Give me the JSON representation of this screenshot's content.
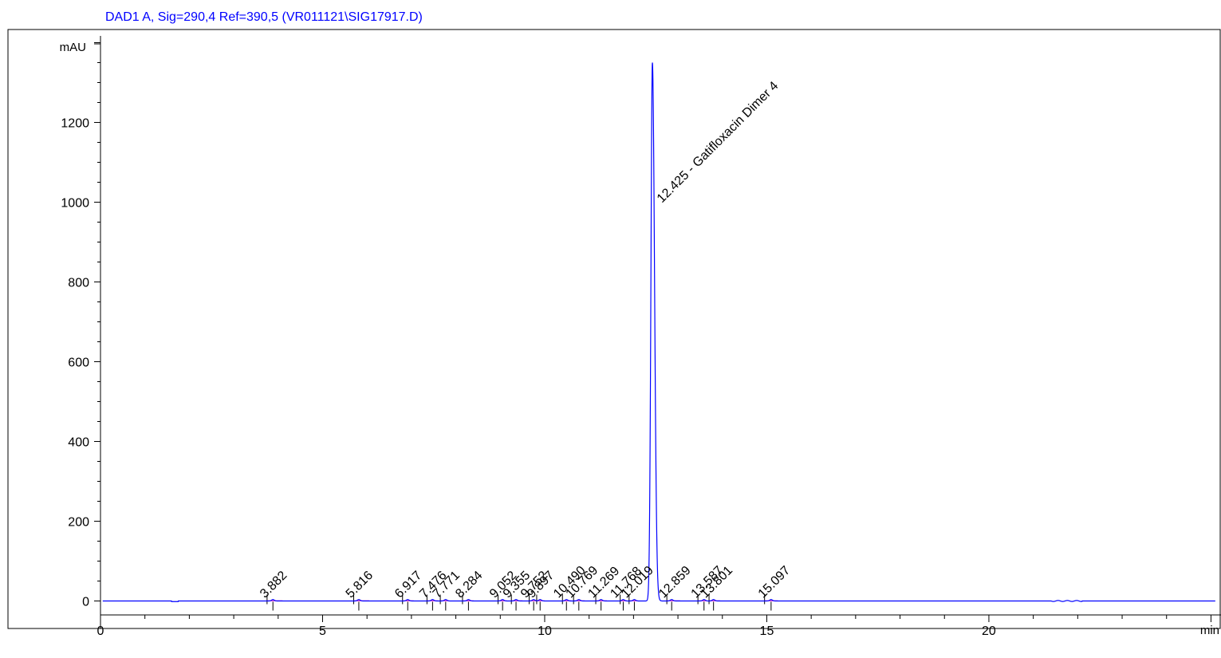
{
  "chart_data": {
    "type": "line",
    "title": "DAD1 A, Sig=290,4 Ref=390,5 (VR011121\\SIG17917.D)",
    "xlabel": "min",
    "ylabel": "mAU",
    "xlim": [
      0,
      25.1
    ],
    "ylim": [
      -70,
      1410
    ],
    "x_ticks": [
      0,
      5,
      10,
      15,
      20
    ],
    "x_tick_labels": [
      "0",
      "5",
      "10",
      "15",
      "20"
    ],
    "y_ticks": [
      0,
      200,
      400,
      600,
      800,
      1000,
      1200
    ],
    "y_tick_labels": [
      "0",
      "200",
      "400",
      "600",
      "800",
      "1000",
      "1200"
    ],
    "grid": false,
    "colors": {
      "trace": "#0000ff",
      "baseline": "#cc00cc",
      "axis": "#000000",
      "title": "#0000ff"
    },
    "main_peak": {
      "rt": 12.425,
      "height": 1350,
      "label": "12.425 -  Gatifloxacin Dimer 4"
    },
    "peaks": [
      {
        "rt": 3.882,
        "label": "3.882",
        "start": 3.75,
        "end": 4.1
      },
      {
        "rt": 5.816,
        "label": "5.816",
        "start": 5.7,
        "end": 6.05
      },
      {
        "rt": 6.917,
        "label": "6.917",
        "start": 6.8,
        "end": 7.05
      },
      {
        "rt": 7.476,
        "label": "7.476",
        "start": 7.35,
        "end": 7.6
      },
      {
        "rt": 7.771,
        "label": "7.771",
        "start": 7.65,
        "end": 7.85
      },
      {
        "rt": 8.284,
        "label": "8.284",
        "start": 8.15,
        "end": 8.4
      },
      {
        "rt": 9.052,
        "label": "9.052",
        "start": 8.95,
        "end": 9.15
      },
      {
        "rt": 9.355,
        "label": "9.355",
        "start": 9.25,
        "end": 9.5
      },
      {
        "rt": 9.752,
        "label": "9.752",
        "start": 9.65,
        "end": 9.8
      },
      {
        "rt": 9.897,
        "label": "9.897",
        "start": 9.82,
        "end": 10.0
      },
      {
        "rt": 10.49,
        "label": "10.490",
        "start": 10.4,
        "end": 10.6
      },
      {
        "rt": 10.769,
        "label": "10.769",
        "start": 10.65,
        "end": 10.9
      },
      {
        "rt": 11.269,
        "label": "11.269",
        "start": 11.15,
        "end": 11.4
      },
      {
        "rt": 11.768,
        "label": "11.768",
        "start": 11.7,
        "end": 11.85
      },
      {
        "rt": 12.019,
        "label": "12.019",
        "start": 11.9,
        "end": 12.1
      },
      {
        "rt": 12.859,
        "label": "12.859",
        "start": 12.75,
        "end": 13.05
      },
      {
        "rt": 13.587,
        "label": "13.587",
        "start": 13.45,
        "end": 13.65
      },
      {
        "rt": 13.801,
        "label": "13.801",
        "start": 13.7,
        "end": 13.95
      },
      {
        "rt": 15.097,
        "label": "15.097",
        "start": 14.95,
        "end": 15.25
      }
    ]
  }
}
